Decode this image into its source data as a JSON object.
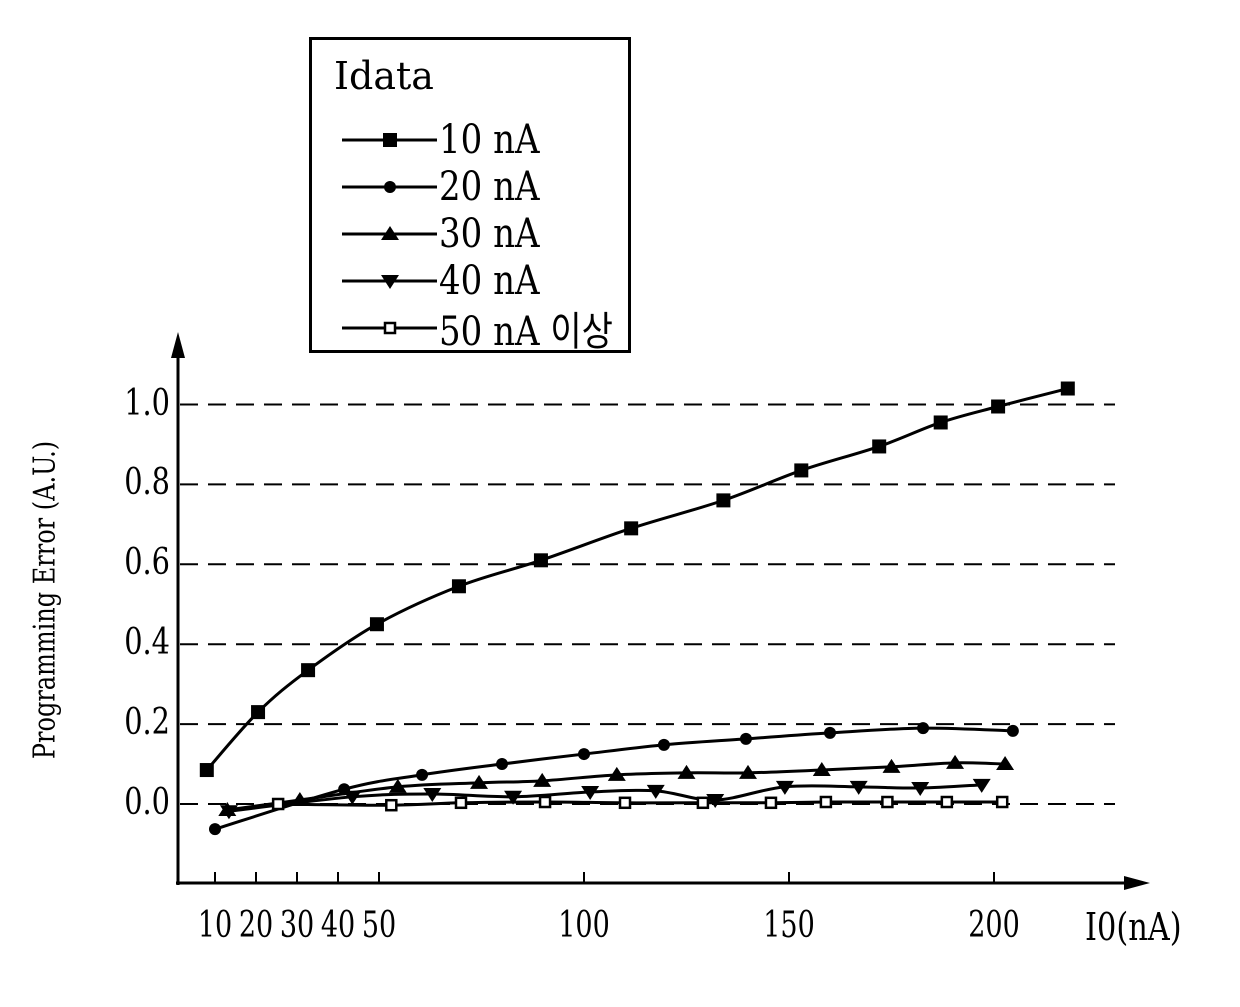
{
  "chart_data": {
    "type": "line",
    "title": "",
    "xlabel": "I0(nA)",
    "ylabel": "Programming Error (A.U.)",
    "xlim": [
      0,
      230
    ],
    "ylim": [
      -0.2,
      1.1
    ],
    "x_ticks": [
      10,
      20,
      30,
      40,
      50,
      100,
      150,
      200
    ],
    "x_tick_labels": [
      "10",
      "20",
      "30",
      "40",
      "50",
      "100",
      "150",
      "200"
    ],
    "y_ticks": [
      0.0,
      0.2,
      0.4,
      0.6,
      0.8,
      1.0
    ],
    "y_tick_labels": [
      "0.0",
      "0.2",
      "0.4",
      "0.6",
      "0.8",
      "1.0"
    ],
    "grid": "horizontal dashed",
    "legend": {
      "title": "Idata",
      "placement": "top-left"
    },
    "series": [
      {
        "name": "10 nA",
        "marker": "filled-square",
        "x": [
          8,
          20.5,
          32.7,
          49.5,
          69.5,
          89.5,
          111.5,
          134,
          153,
          172,
          187,
          201,
          218
        ],
        "y": [
          0.085,
          0.23,
          0.335,
          0.45,
          0.545,
          0.61,
          0.69,
          0.76,
          0.835,
          0.895,
          0.955,
          0.995,
          1.04
        ]
      },
      {
        "name": "20 nA",
        "marker": "filled-circle",
        "x": [
          10,
          41.5,
          60.5,
          80,
          100,
          119.5,
          139.5,
          160,
          182.7,
          204.6
        ],
        "y": [
          -0.063,
          0.037,
          0.073,
          0.1,
          0.125,
          0.148,
          0.163,
          0.178,
          0.19,
          0.183
        ]
      },
      {
        "name": "30 nA",
        "marker": "filled-triangle-up",
        "x": [
          13,
          30.7,
          54.6,
          74.4,
          89.8,
          108,
          125,
          140,
          158,
          175,
          190.5,
          202.7
        ],
        "y": [
          -0.015,
          0.01,
          0.043,
          0.053,
          0.058,
          0.073,
          0.078,
          0.078,
          0.085,
          0.093,
          0.103,
          0.1
        ]
      },
      {
        "name": "40 nA",
        "marker": "filled-triangle-down",
        "x": [
          13.4,
          43.5,
          63,
          82.7,
          101.5,
          117.5,
          132,
          149,
          167,
          182,
          197
        ],
        "y": [
          -0.018,
          0.018,
          0.025,
          0.018,
          0.03,
          0.033,
          0.01,
          0.043,
          0.043,
          0.04,
          0.048
        ]
      },
      {
        "name": "50 nA 이상",
        "marker": "open-square",
        "x": [
          25.4,
          53,
          70,
          90.5,
          110,
          129,
          145.6,
          159,
          174,
          188.5,
          202
        ],
        "y": [
          0,
          -0.003,
          0.003,
          0.005,
          0.003,
          0.003,
          0.003,
          0.005,
          0.005,
          0.005,
          0.005
        ]
      }
    ]
  }
}
